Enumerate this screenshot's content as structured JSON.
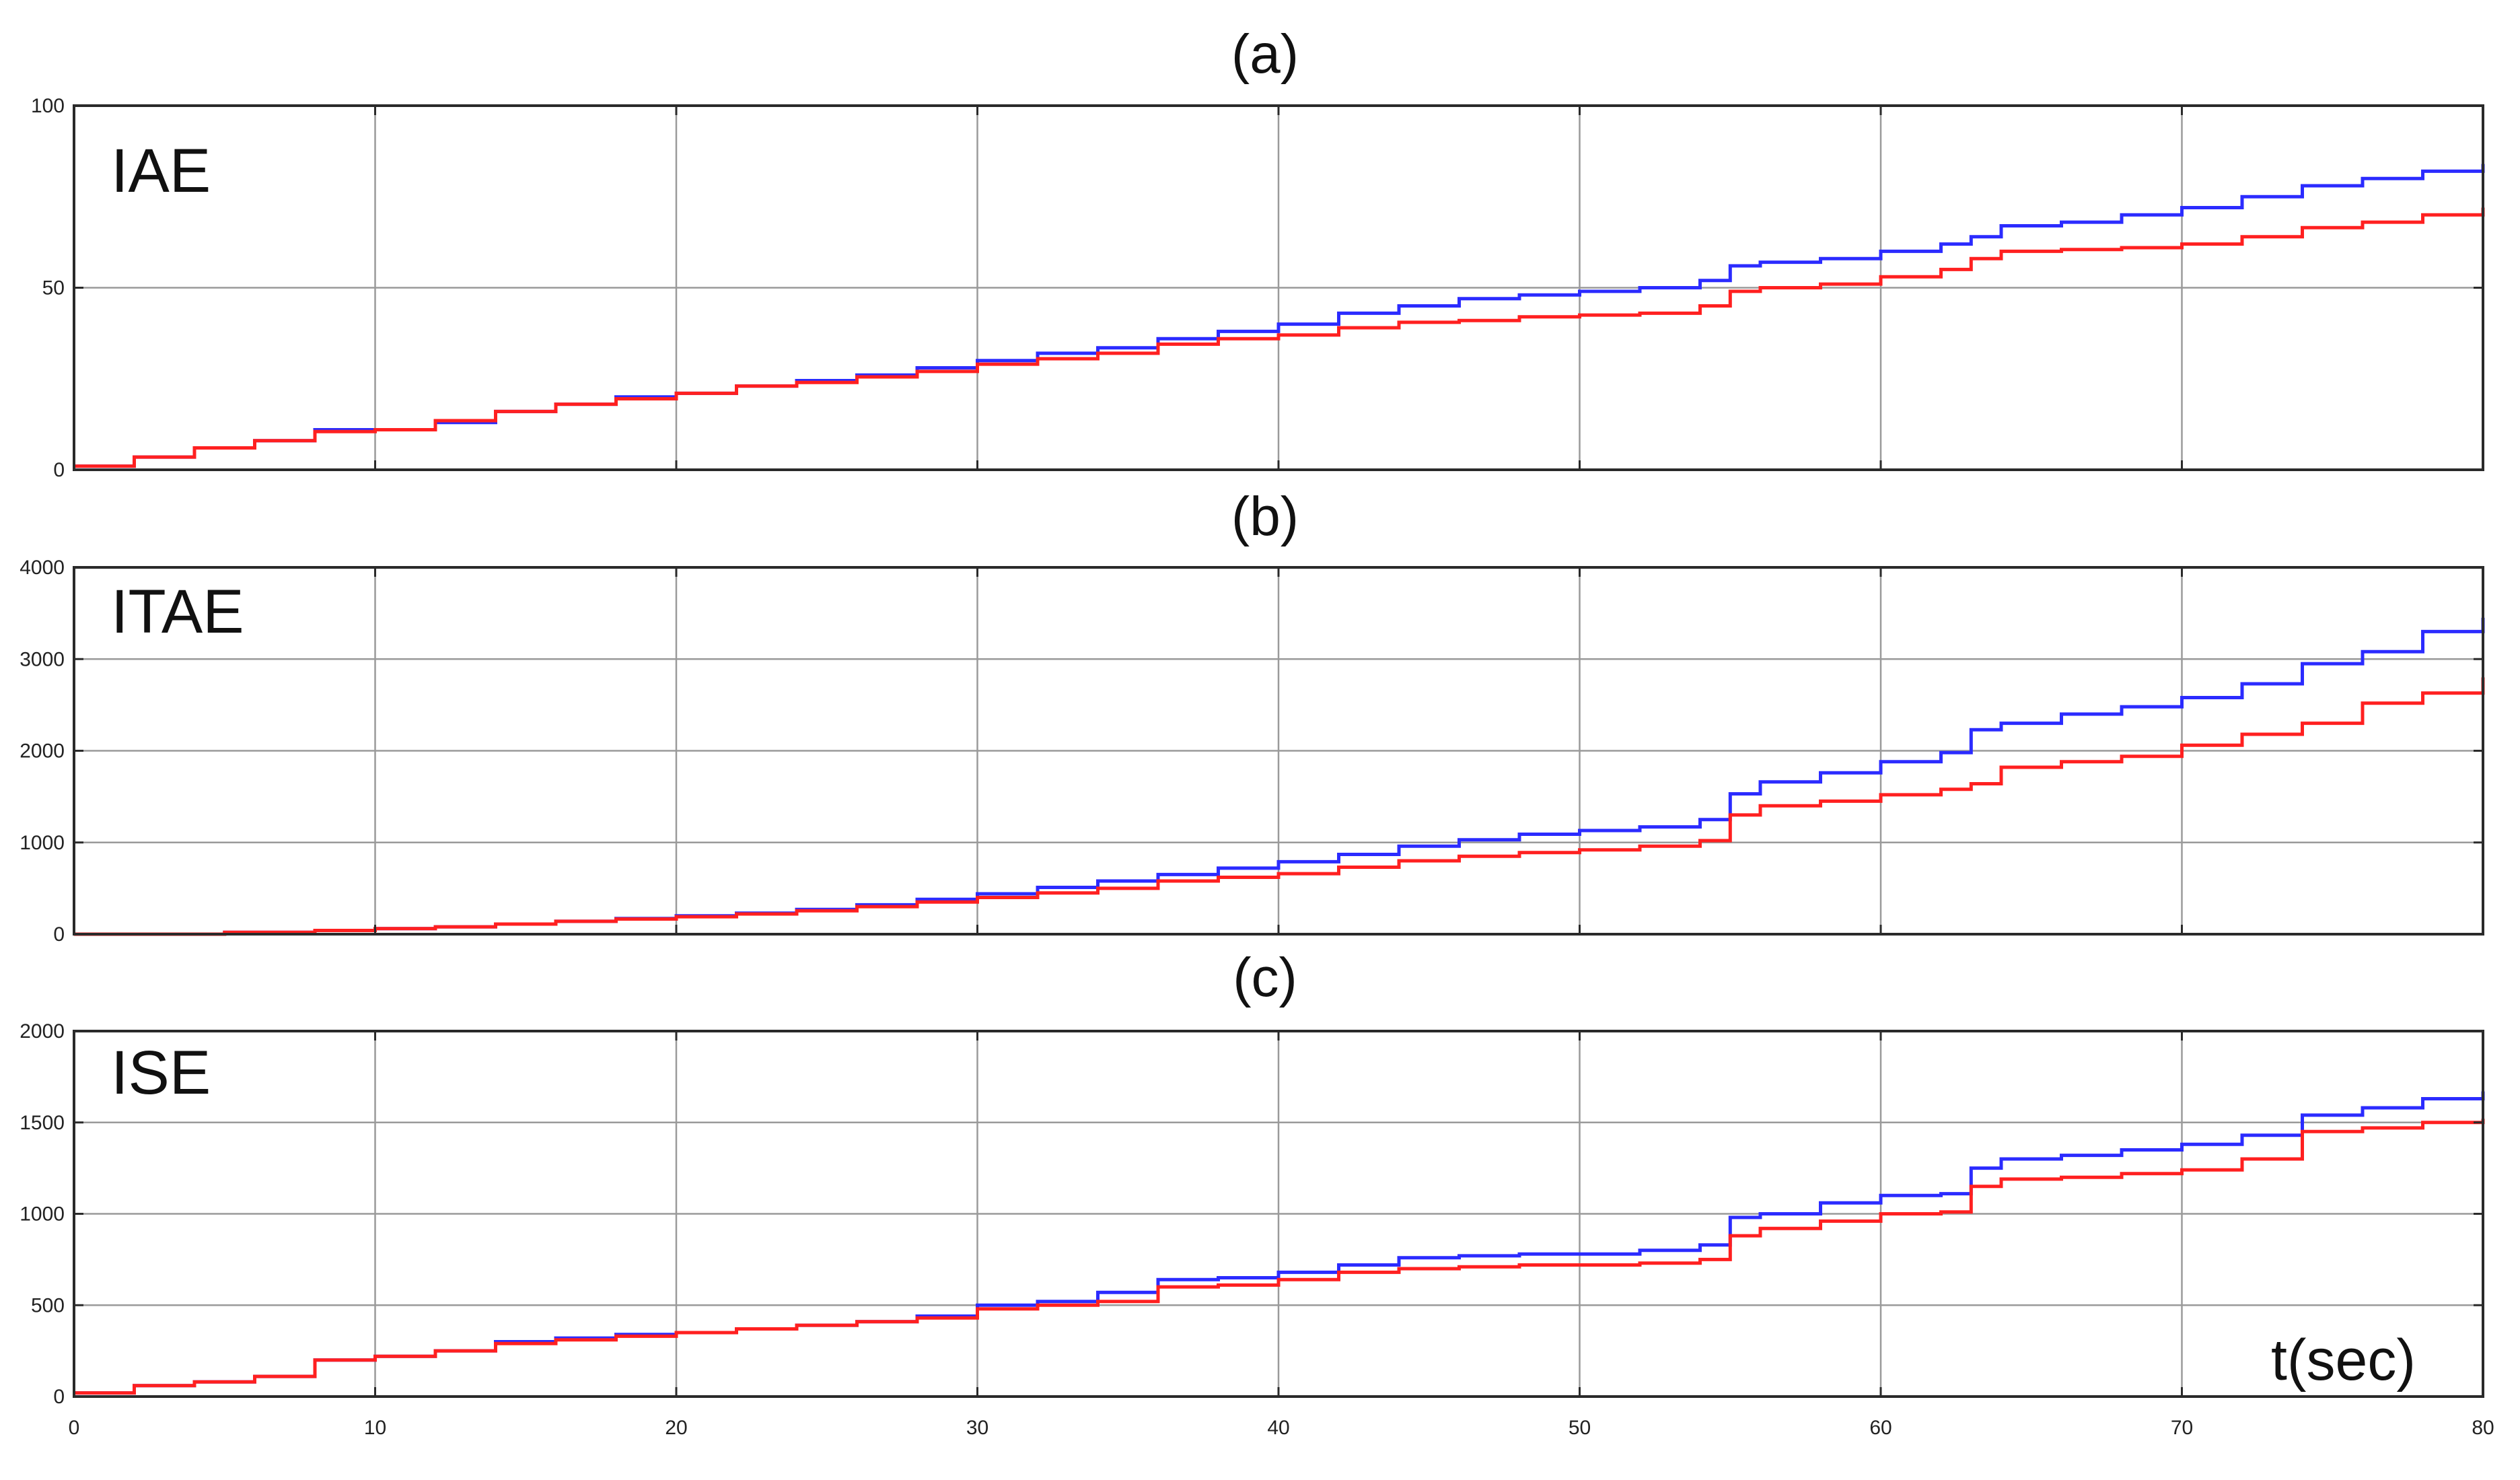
{
  "chart_data": [
    {
      "type": "line",
      "title": "(a)",
      "annotation": "IAE",
      "xlim": [
        0,
        80
      ],
      "ylim": [
        0,
        100
      ],
      "x_ticks": [
        0,
        10,
        20,
        30,
        40,
        50,
        60,
        70,
        80
      ],
      "y_ticks": [
        0,
        50,
        100
      ],
      "x_tick_labels": [
        "0",
        "10",
        "20",
        "30",
        "40",
        "50",
        "60",
        "70",
        "80"
      ],
      "y_tick_labels": [
        "0",
        "50",
        "100"
      ],
      "grid": true,
      "series": [
        {
          "color": "#2b2bff",
          "x": [
            0,
            2,
            4,
            6,
            8,
            10,
            12,
            14,
            16,
            18,
            20,
            22,
            24,
            26,
            28,
            30,
            32,
            34,
            36,
            38,
            40,
            42,
            44,
            46,
            48,
            50,
            52,
            54,
            55,
            56,
            58,
            60,
            62,
            63,
            64,
            66,
            68,
            70,
            72,
            74,
            76,
            78,
            80
          ],
          "y": [
            1,
            3.5,
            6,
            8,
            11,
            11,
            13,
            16,
            18,
            20,
            21,
            23,
            24.5,
            26,
            28,
            30,
            32,
            33.5,
            36,
            38,
            40,
            43,
            45,
            47,
            48,
            49,
            50,
            52,
            56,
            57,
            58,
            60,
            62,
            64,
            67,
            68,
            70,
            72,
            75,
            78,
            80,
            82,
            84
          ]
        },
        {
          "color": "#ff2020",
          "x": [
            0,
            2,
            4,
            6,
            8,
            10,
            12,
            14,
            16,
            18,
            20,
            22,
            24,
            26,
            28,
            30,
            32,
            34,
            36,
            38,
            40,
            42,
            44,
            46,
            48,
            50,
            52,
            54,
            55,
            56,
            58,
            60,
            62,
            63,
            64,
            66,
            68,
            70,
            72,
            74,
            76,
            78,
            80
          ],
          "y": [
            1,
            3.5,
            6,
            8,
            10.5,
            11,
            13.5,
            16,
            18,
            19.5,
            21,
            23,
            24,
            25.5,
            27,
            29,
            30.5,
            32,
            34.5,
            36,
            37,
            39,
            40.5,
            41,
            42,
            42.5,
            43,
            45,
            49,
            50,
            51,
            53,
            55,
            58,
            60,
            60.5,
            61,
            62,
            64,
            66.5,
            68,
            70,
            72
          ]
        }
      ]
    },
    {
      "type": "line",
      "title": "(b)",
      "annotation": "ITAE",
      "xlim": [
        0,
        80
      ],
      "ylim": [
        0,
        4000
      ],
      "x_ticks": [
        0,
        10,
        20,
        30,
        40,
        50,
        60,
        70,
        80
      ],
      "y_ticks": [
        0,
        1000,
        2000,
        3000,
        4000
      ],
      "x_tick_labels": [
        "0",
        "10",
        "20",
        "30",
        "40",
        "50",
        "60",
        "70",
        "80"
      ],
      "y_tick_labels": [
        "0",
        "1000",
        "2000",
        "3000",
        "4000"
      ],
      "grid": true,
      "series": [
        {
          "color": "#2b2bff",
          "x": [
            0,
            5,
            8,
            10,
            12,
            14,
            16,
            18,
            20,
            22,
            24,
            26,
            28,
            30,
            32,
            34,
            36,
            38,
            40,
            42,
            44,
            46,
            48,
            50,
            52,
            54,
            55,
            56,
            58,
            60,
            62,
            63,
            64,
            66,
            68,
            70,
            72,
            74,
            76,
            78,
            80
          ],
          "y": [
            0,
            20,
            40,
            60,
            80,
            110,
            140,
            170,
            200,
            230,
            270,
            320,
            380,
            440,
            510,
            580,
            650,
            720,
            790,
            870,
            960,
            1030,
            1090,
            1130,
            1170,
            1250,
            1530,
            1660,
            1760,
            1880,
            1980,
            2230,
            2300,
            2400,
            2480,
            2580,
            2730,
            2950,
            3080,
            3300,
            3450
          ]
        },
        {
          "color": "#ff2020",
          "x": [
            0,
            5,
            8,
            10,
            12,
            14,
            16,
            18,
            20,
            22,
            24,
            26,
            28,
            30,
            32,
            34,
            36,
            38,
            40,
            42,
            44,
            46,
            48,
            50,
            52,
            54,
            55,
            56,
            58,
            60,
            62,
            63,
            64,
            66,
            68,
            70,
            72,
            74,
            76,
            78,
            80
          ],
          "y": [
            0,
            20,
            40,
            60,
            80,
            110,
            140,
            165,
            190,
            220,
            255,
            300,
            350,
            400,
            450,
            500,
            580,
            620,
            660,
            730,
            800,
            850,
            890,
            920,
            960,
            1020,
            1300,
            1400,
            1450,
            1520,
            1580,
            1640,
            1820,
            1880,
            1940,
            2060,
            2180,
            2300,
            2520,
            2630,
            2800
          ]
        }
      ]
    },
    {
      "type": "line",
      "title": "(c)",
      "annotation": "ISE",
      "xlim": [
        0,
        80
      ],
      "ylim": [
        0,
        2000
      ],
      "x_ticks": [
        0,
        10,
        20,
        30,
        40,
        50,
        60,
        70,
        80
      ],
      "y_ticks": [
        0,
        500,
        1000,
        1500,
        2000
      ],
      "x_tick_labels": [
        "0",
        "10",
        "20",
        "30",
        "40",
        "50",
        "60",
        "70",
        "80"
      ],
      "y_tick_labels": [
        "0",
        "500",
        "1000",
        "1500",
        "2000"
      ],
      "grid": true,
      "x_unit_label": "t(sec)",
      "series": [
        {
          "color": "#2b2bff",
          "x": [
            0,
            2,
            4,
            6,
            8,
            10,
            12,
            14,
            16,
            18,
            20,
            22,
            24,
            26,
            28,
            30,
            32,
            34,
            36,
            38,
            40,
            42,
            44,
            46,
            48,
            50,
            52,
            54,
            55,
            56,
            58,
            60,
            62,
            63,
            64,
            66,
            68,
            70,
            72,
            74,
            76,
            78,
            80
          ],
          "y": [
            20,
            60,
            80,
            110,
            200,
            220,
            250,
            300,
            320,
            340,
            350,
            370,
            390,
            410,
            440,
            500,
            520,
            570,
            640,
            650,
            680,
            720,
            760,
            770,
            780,
            780,
            800,
            830,
            980,
            1000,
            1060,
            1100,
            1110,
            1250,
            1300,
            1320,
            1350,
            1380,
            1430,
            1540,
            1580,
            1630,
            1670
          ]
        },
        {
          "color": "#ff2020",
          "x": [
            0,
            2,
            4,
            6,
            8,
            10,
            12,
            14,
            16,
            18,
            20,
            22,
            24,
            26,
            28,
            30,
            32,
            34,
            36,
            38,
            40,
            42,
            44,
            46,
            48,
            50,
            52,
            54,
            55,
            56,
            58,
            60,
            62,
            63,
            64,
            66,
            68,
            70,
            72,
            74,
            76,
            78,
            80
          ],
          "y": [
            20,
            60,
            80,
            110,
            200,
            220,
            250,
            290,
            310,
            330,
            350,
            370,
            390,
            410,
            430,
            480,
            500,
            520,
            600,
            610,
            640,
            680,
            700,
            710,
            720,
            720,
            730,
            750,
            880,
            920,
            960,
            1000,
            1010,
            1150,
            1190,
            1200,
            1220,
            1240,
            1300,
            1450,
            1470,
            1500,
            1520
          ]
        }
      ]
    }
  ]
}
